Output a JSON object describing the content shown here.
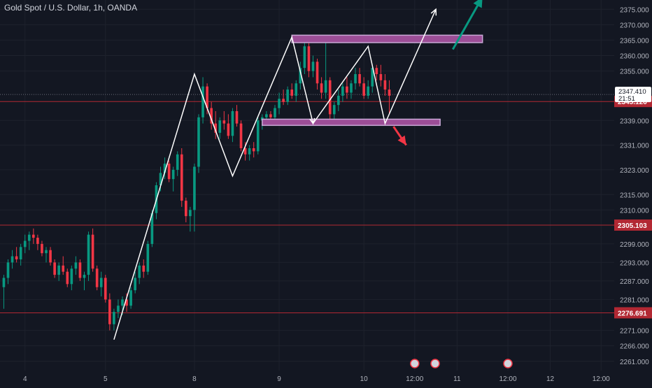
{
  "title": "Gold Spot / U.S. Dollar, 1h, OANDA",
  "colors": {
    "background": "#131722",
    "grid": "#1e222d",
    "text": "#b2b5be",
    "up": "#089981",
    "down": "#f23645",
    "level_line": "#b22833",
    "rect_fill": "#9c4e97",
    "rect_stroke": "#c9a8d6",
    "arrow_up": "#089981",
    "arrow_down": "#f23645",
    "crosshair": "#6a6d78"
  },
  "chart_data": {
    "type": "candlestick",
    "title": "Gold Spot / U.S. Dollar, 1h, OANDA",
    "ylim": [
      2258,
      2378
    ],
    "y_ticks": [
      "2375.000",
      "2370.000",
      "2365.000",
      "2360.000",
      "2355.000",
      "2339.000",
      "2331.000",
      "2323.000",
      "2315.000",
      "2310.000",
      "2299.000",
      "2293.000",
      "2287.000",
      "2281.000",
      "2271.000",
      "2266.000",
      "2261.000"
    ],
    "x_ticks": [
      {
        "label": "4",
        "i": 5
      },
      {
        "label": "5",
        "i": 24
      },
      {
        "label": "8",
        "i": 45
      },
      {
        "label": "9",
        "i": 65
      },
      {
        "label": "10",
        "i": 85
      },
      {
        "label": "12:00",
        "i": 97
      },
      {
        "label": "11",
        "i": 107
      },
      {
        "label": "12:00",
        "i": 119
      },
      {
        "label": "12",
        "i": 129
      },
      {
        "label": "12:00",
        "i": 141
      }
    ],
    "n_slots": 145,
    "levels": [
      {
        "value": 2345.126,
        "label": "2345.126"
      },
      {
        "value": 2305.103,
        "label": "2305.103"
      },
      {
        "value": 2276.691,
        "label": "2276.691"
      }
    ],
    "current_price": {
      "value": 2347.41,
      "label": "2347.410",
      "countdown": "21:51"
    },
    "candles": [
      [
        2285,
        2289,
        2278,
        2288
      ],
      [
        2288,
        2294,
        2286,
        2293
      ],
      [
        2293,
        2297,
        2291,
        2295
      ],
      [
        2295,
        2298,
        2293,
        2294
      ],
      [
        2294,
        2299,
        2292,
        2298
      ],
      [
        2298,
        2302,
        2296,
        2300
      ],
      [
        2300,
        2303,
        2297,
        2302
      ],
      [
        2302,
        2304,
        2299,
        2301
      ],
      [
        2301,
        2302,
        2297,
        2299
      ],
      [
        2299,
        2300,
        2295,
        2296
      ],
      [
        2296,
        2298,
        2293,
        2297
      ],
      [
        2297,
        2298,
        2292,
        2293
      ],
      [
        2293,
        2294,
        2288,
        2289
      ],
      [
        2289,
        2293,
        2287,
        2292
      ],
      [
        2292,
        2295,
        2289,
        2290
      ],
      [
        2290,
        2291,
        2285,
        2286
      ],
      [
        2286,
        2292,
        2284,
        2291
      ],
      [
        2291,
        2295,
        2289,
        2293
      ],
      [
        2293,
        2294,
        2287,
        2288
      ],
      [
        2288,
        2290,
        2284,
        2289
      ],
      [
        2289,
        2303,
        2287,
        2302
      ],
      [
        2302,
        2304,
        2290,
        2291
      ],
      [
        2291,
        2292,
        2284,
        2285
      ],
      [
        2285,
        2290,
        2282,
        2288
      ],
      [
        2288,
        2289,
        2280,
        2281
      ],
      [
        2281,
        2283,
        2271,
        2273
      ],
      [
        2273,
        2278,
        2271,
        2277
      ],
      [
        2277,
        2281,
        2275,
        2279
      ],
      [
        2279,
        2282,
        2276,
        2281
      ],
      [
        2281,
        2283,
        2277,
        2279
      ],
      [
        2279,
        2285,
        2278,
        2284
      ],
      [
        2284,
        2290,
        2283,
        2288
      ],
      [
        2288,
        2293,
        2286,
        2292
      ],
      [
        2292,
        2294,
        2288,
        2290
      ],
      [
        2290,
        2300,
        2289,
        2299
      ],
      [
        2299,
        2310,
        2298,
        2309
      ],
      [
        2309,
        2319,
        2307,
        2318
      ],
      [
        2318,
        2324,
        2316,
        2322
      ],
      [
        2322,
        2327,
        2320,
        2325
      ],
      [
        2325,
        2326,
        2319,
        2320
      ],
      [
        2320,
        2324,
        2316,
        2323
      ],
      [
        2323,
        2329,
        2321,
        2328
      ],
      [
        2328,
        2330,
        2311,
        2313
      ],
      [
        2313,
        2314,
        2306,
        2308
      ],
      [
        2308,
        2311,
        2303,
        2310
      ],
      [
        2310,
        2325,
        2303,
        2324
      ],
      [
        2324,
        2341,
        2322,
        2340
      ],
      [
        2340,
        2353,
        2338,
        2350
      ],
      [
        2350,
        2351,
        2341,
        2343
      ],
      [
        2343,
        2345,
        2336,
        2338
      ],
      [
        2338,
        2342,
        2333,
        2335
      ],
      [
        2335,
        2340,
        2333,
        2339
      ],
      [
        2339,
        2342,
        2336,
        2338
      ],
      [
        2338,
        2341,
        2333,
        2334
      ],
      [
        2334,
        2343,
        2332,
        2342
      ],
      [
        2342,
        2344,
        2337,
        2338
      ],
      [
        2338,
        2339,
        2329,
        2330
      ],
      [
        2330,
        2332,
        2326,
        2328
      ],
      [
        2328,
        2331,
        2326,
        2330
      ],
      [
        2330,
        2332,
        2327,
        2329
      ],
      [
        2329,
        2340,
        2328,
        2339
      ],
      [
        2339,
        2341,
        2336,
        2340
      ],
      [
        2340,
        2342,
        2338,
        2341
      ],
      [
        2341,
        2342,
        2339,
        2340
      ],
      [
        2340,
        2344,
        2339,
        2343
      ],
      [
        2343,
        2348,
        2341,
        2346
      ],
      [
        2346,
        2349,
        2344,
        2345
      ],
      [
        2345,
        2350,
        2344,
        2349
      ],
      [
        2349,
        2351,
        2346,
        2347
      ],
      [
        2347,
        2352,
        2345,
        2351
      ],
      [
        2351,
        2358,
        2349,
        2356
      ],
      [
        2356,
        2365,
        2354,
        2363
      ],
      [
        2363,
        2364,
        2353,
        2355
      ],
      [
        2355,
        2360,
        2353,
        2358
      ],
      [
        2358,
        2359,
        2349,
        2351
      ],
      [
        2351,
        2353,
        2346,
        2348
      ],
      [
        2348,
        2365,
        2346,
        2352
      ],
      [
        2352,
        2353,
        2339,
        2341
      ],
      [
        2341,
        2345,
        2339,
        2344
      ],
      [
        2344,
        2349,
        2342,
        2347
      ],
      [
        2347,
        2351,
        2345,
        2350
      ],
      [
        2350,
        2353,
        2346,
        2348
      ],
      [
        2348,
        2352,
        2346,
        2351
      ],
      [
        2351,
        2356,
        2349,
        2354
      ],
      [
        2354,
        2356,
        2350,
        2351
      ],
      [
        2351,
        2353,
        2346,
        2347
      ],
      [
        2347,
        2352,
        2346,
        2350
      ],
      [
        2350,
        2357,
        2348,
        2356
      ],
      [
        2356,
        2357,
        2352,
        2354
      ],
      [
        2354,
        2357,
        2350,
        2352
      ],
      [
        2352,
        2354,
        2347,
        2349
      ],
      [
        2349,
        2352,
        2341,
        2347
      ]
    ],
    "pattern_points": [
      [
        26,
        2268
      ],
      [
        45,
        2354
      ],
      [
        54,
        2321
      ],
      [
        68,
        2366
      ],
      [
        73,
        2338
      ],
      [
        86,
        2363
      ],
      [
        90,
        2338
      ],
      [
        102,
        2375
      ]
    ],
    "resistance_box": {
      "from_i": 68,
      "to_i": 113,
      "low": 2364.2,
      "high": 2366.6
    },
    "support_box": {
      "from_i": 61,
      "to_i": 103,
      "low": 2337.4,
      "high": 2339.4
    },
    "arrow_up": {
      "from": [
        106,
        2362
      ],
      "to": [
        113,
        2379
      ]
    },
    "arrow_down": {
      "from": [
        92,
        2337
      ],
      "to": [
        95,
        2331
      ]
    }
  }
}
